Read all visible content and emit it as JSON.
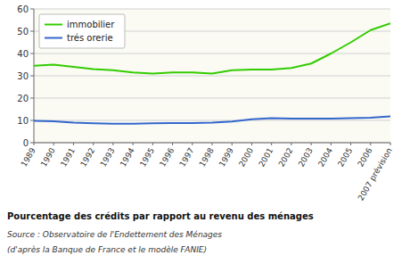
{
  "chart_data": {
    "type": "line",
    "title": "Pourcentage des crédits par rapport au revenu des ménages",
    "annotations": [
      "Source : Observatoire de l'Endettement des Ménages",
      "(d'après la Banque de France et le modèle FANIE)"
    ],
    "categories": [
      "1989",
      "1990",
      "1991",
      "1992",
      "1993",
      "1994",
      "1995",
      "1996",
      "1997",
      "1998",
      "1999",
      "2000",
      "2001",
      "2002",
      "2003",
      "2004",
      "2005",
      "2006",
      "2007 prévision"
    ],
    "series": [
      {
        "name": "immobilier",
        "color": "#33cc00",
        "values": [
          34.5,
          35.0,
          34.0,
          33.0,
          32.5,
          31.5,
          31.0,
          31.5,
          31.5,
          31.0,
          32.5,
          32.8,
          32.8,
          33.5,
          35.5,
          40.0,
          45.0,
          50.5,
          53.5
        ]
      },
      {
        "name": "trés orerie",
        "color": "#3366cc",
        "values": [
          9.8,
          9.6,
          9.0,
          8.7,
          8.5,
          8.5,
          8.7,
          8.8,
          8.8,
          9.0,
          9.5,
          10.5,
          11.0,
          10.8,
          10.8,
          10.8,
          11.0,
          11.2,
          11.8
        ]
      }
    ],
    "ylim": [
      0,
      60
    ],
    "yticks": [
      0,
      10,
      20,
      30,
      40,
      50,
      60
    ],
    "grid": true,
    "legend": "top-left"
  }
}
